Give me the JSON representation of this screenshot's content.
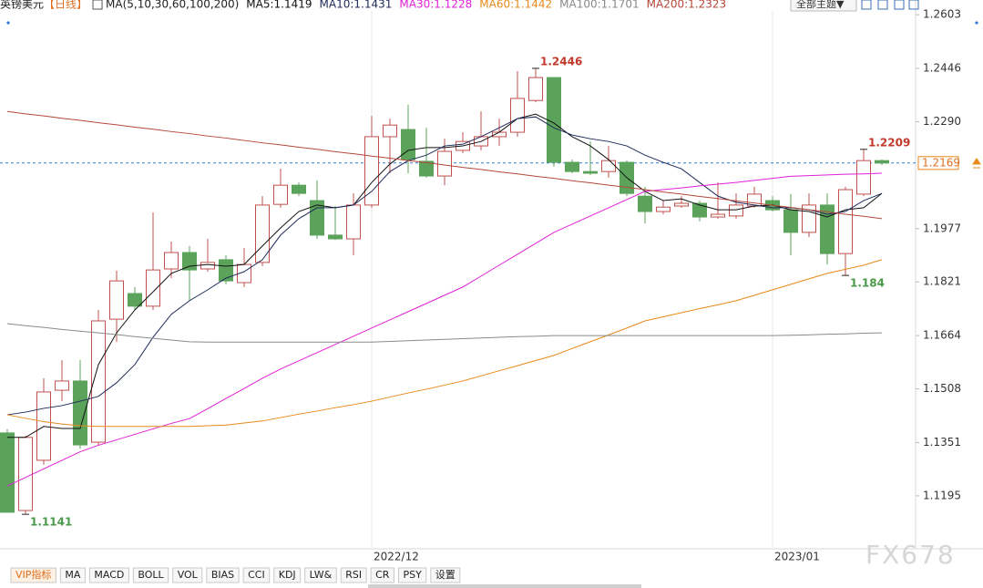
{
  "header": {
    "symbol": "英镑美元",
    "period": "【日线】",
    "ma_params": "MA(5,10,30,60,100,200)",
    "theme_button": "全部主题▼"
  },
  "chart_data": {
    "type": "candlestick",
    "categories": [
      null,
      null,
      null,
      null,
      null,
      null,
      null,
      null,
      null,
      null,
      null,
      null,
      null,
      null,
      null,
      null,
      null,
      null,
      null,
      null,
      "2022/12",
      null,
      null,
      null,
      null,
      null,
      null,
      null,
      null,
      null,
      null,
      null,
      null,
      null,
      null,
      null,
      null,
      null,
      null,
      null,
      null,
      null,
      "2023/01",
      null,
      null,
      null,
      null,
      null,
      null
    ],
    "open": [
      1.1379,
      1.1152,
      1.1299,
      1.1504,
      1.1531,
      1.1352,
      1.1712,
      1.1787,
      1.175,
      1.1859,
      1.1907,
      1.1859,
      1.1886,
      1.1819,
      1.1878,
      1.2048,
      1.2104,
      1.2059,
      1.1958,
      1.1947,
      1.2046,
      1.2246,
      1.2267,
      1.2174,
      1.2131,
      1.2206,
      1.2219,
      1.2246,
      1.2259,
      1.2352,
      1.2419,
      1.2171,
      1.2144,
      1.2144,
      1.2171,
      1.2072,
      1.2027,
      1.2043,
      1.2051,
      1.2011,
      1.2014,
      1.2043,
      1.2059,
      1.2032,
      1.1966,
      1.2046,
      1.1904,
      1.2078,
      1.2176
    ],
    "high": [
      1.139,
      1.1371,
      1.1539,
      1.1592,
      1.1592,
      1.1739,
      1.1854,
      1.1806,
      1.2024,
      1.1939,
      1.1926,
      1.1947,
      1.1899,
      1.192,
      1.2072,
      1.2152,
      1.2112,
      1.2118,
      1.2043,
      1.208,
      1.2307,
      1.2299,
      1.2339,
      1.2272,
      1.224,
      1.2259,
      1.232,
      1.2299,
      1.2438,
      1.2446,
      1.2419,
      1.2179,
      1.2232,
      1.2219,
      1.2176,
      1.2099,
      1.2059,
      1.2072,
      1.2059,
      1.2112,
      1.208,
      1.2099,
      1.2072,
      1.2078,
      1.208,
      1.208,
      1.2099,
      1.2209,
      1.2179
    ],
    "low": [
      1.1145,
      1.1141,
      1.1286,
      1.1472,
      1.1333,
      1.1344,
      1.1646,
      1.1739,
      1.1739,
      1.1832,
      1.1766,
      1.1851,
      1.1814,
      1.1806,
      1.1867,
      1.2038,
      1.2072,
      1.1947,
      1.1944,
      1.1899,
      1.2038,
      1.2139,
      1.2139,
      1.2126,
      1.2104,
      1.2198,
      1.2206,
      1.2219,
      1.2246,
      1.2347,
      1.2158,
      1.2139,
      1.2134,
      1.2126,
      1.2072,
      1.1992,
      1.2019,
      1.2038,
      1.1998,
      1.2006,
      1.2006,
      1.2038,
      1.2027,
      1.1899,
      1.1952,
      1.1872,
      1.184,
      1.2072,
      1.2163
    ],
    "close": [
      1.1147,
      1.1366,
      1.1499,
      1.1531,
      1.1344,
      1.1707,
      1.1824,
      1.175,
      1.1856,
      1.1907,
      1.1856,
      1.1878,
      1.1824,
      1.1872,
      1.2046,
      1.2104,
      1.208,
      1.1958,
      1.1947,
      1.2046,
      1.2246,
      1.228,
      1.2179,
      1.2131,
      1.2203,
      1.2232,
      1.2246,
      1.2259,
      1.2358,
      1.2419,
      1.2171,
      1.2144,
      1.2139,
      1.2176,
      1.208,
      1.2027,
      1.204,
      1.2051,
      1.2011,
      1.2019,
      1.2046,
      1.2078,
      1.2032,
      1.1966,
      1.2046,
      1.1904,
      1.2091,
      1.2176,
      1.2169
    ],
    "up_color": "#c0504d",
    "down_color": "#5ba35b",
    "ylim": [
      1.104,
      1.2646
    ],
    "yticks": [
      1.2603,
      1.2446,
      {
        "value": 1.229,
        "label": "1.2290"
      },
      1.1977,
      1.1821,
      1.1664,
      1.1508,
      1.1351,
      1.1195
    ],
    "series": [
      {
        "name": "MA5:1.1419",
        "color": "#111111",
        "values": [
          1.1366,
          1.1366,
          1.1398,
          1.1392,
          1.1392,
          1.1579,
          1.1672,
          1.1739,
          1.1792,
          1.1846,
          1.1867,
          1.1872,
          1.1867,
          1.1872,
          1.1926,
          1.1979,
          1.2027,
          1.2046,
          1.2038,
          1.2046,
          1.2112,
          1.2166,
          1.2206,
          1.2214,
          1.2214,
          1.2219,
          1.2232,
          1.2259,
          1.2299,
          1.2312,
          1.2286,
          1.2246,
          1.2219,
          1.2179,
          1.2126,
          1.2086,
          1.2059,
          1.2064,
          1.2046,
          1.2032,
          1.2032,
          1.2043,
          1.2046,
          1.2032,
          1.2027,
          1.2011,
          1.2032,
          1.2038,
          1.208
        ]
      },
      {
        "name": "MA10:1.1431",
        "color": "#1f2a5a",
        "values": [
          1.1432,
          1.144,
          1.1451,
          1.1459,
          1.1472,
          1.1486,
          1.1526,
          1.1579,
          1.1659,
          1.1726,
          1.1766,
          1.1798,
          1.1832,
          1.1851,
          1.1886,
          1.1958,
          1.2006,
          1.2038,
          1.2038,
          1.2046,
          1.2086,
          1.2144,
          1.2176,
          1.2192,
          1.2219,
          1.2224,
          1.2246,
          1.2272,
          1.2299,
          1.2304,
          1.2272,
          1.2251,
          1.224,
          1.2232,
          1.2219,
          1.2192,
          1.2171,
          1.2152,
          1.2112,
          1.2072,
          1.2054,
          1.2046,
          1.2038,
          1.2038,
          1.2032,
          1.2019,
          1.2027,
          1.2059,
          1.208
        ]
      },
      {
        "name": "MA30:1.1228",
        "color": "#e020d8",
        "values": [
          1.1224,
          1.1249,
          1.1274,
          1.1299,
          1.1324,
          1.1343,
          1.1359,
          1.1375,
          1.1391,
          1.1407,
          1.1421,
          1.145,
          1.148,
          1.1509,
          1.1539,
          1.1566,
          1.159,
          1.1614,
          1.1638,
          1.1662,
          1.1686,
          1.171,
          1.1734,
          1.1758,
          1.1782,
          1.1806,
          1.1838,
          1.187,
          1.1902,
          1.1934,
          1.1966,
          1.199,
          1.2014,
          1.2038,
          1.2062,
          1.2086,
          1.2091,
          1.2096,
          1.2102,
          1.2107,
          1.2112,
          1.2118,
          1.2124,
          1.213,
          1.2132,
          1.2134,
          1.2136,
          1.2137,
          1.2139
        ]
      },
      {
        "name": "MA60:1.1442",
        "color": "#e8891c",
        "values": [
          1.1432,
          1.1422,
          1.1412,
          1.1405,
          1.14,
          1.1398,
          1.1398,
          1.1398,
          1.1398,
          1.1398,
          1.1398,
          1.14,
          1.1402,
          1.1408,
          1.1414,
          1.1424,
          1.1434,
          1.1443,
          1.1453,
          1.1462,
          1.1472,
          1.1484,
          1.1496,
          1.1507,
          1.1519,
          1.1531,
          1.1546,
          1.1561,
          1.1576,
          1.1591,
          1.1606,
          1.1626,
          1.1646,
          1.1666,
          1.1686,
          1.1707,
          1.1719,
          1.1731,
          1.1743,
          1.1754,
          1.1766,
          1.1782,
          1.1798,
          1.1814,
          1.183,
          1.1846,
          1.1858,
          1.187,
          1.1886
        ]
      },
      {
        "name": "MA100:1.1701",
        "color": "#8a8a8a",
        "values": [
          1.1699,
          1.1693,
          1.1688,
          1.1682,
          1.1677,
          1.1672,
          1.1667,
          1.1661,
          1.1656,
          1.1651,
          1.1646,
          1.1645,
          1.1645,
          1.1645,
          1.1645,
          1.1645,
          1.1645,
          1.1645,
          1.1645,
          1.1645,
          1.1645,
          1.1647,
          1.1649,
          1.1651,
          1.1653,
          1.1655,
          1.1657,
          1.1659,
          1.1661,
          1.1662,
          1.1664,
          1.1664,
          1.1664,
          1.1664,
          1.1664,
          1.1664,
          1.1664,
          1.1664,
          1.1664,
          1.1664,
          1.1664,
          1.1664,
          1.1664,
          1.1665,
          1.1666,
          1.1668,
          1.1669,
          1.1671,
          1.1672
        ]
      },
      {
        "name": "MA200:1.2323",
        "color": "#b5473a",
        "values": [
          1.232,
          1.2313,
          1.2307,
          1.23,
          1.2294,
          1.2287,
          1.2281,
          1.2274,
          1.2268,
          1.2261,
          1.2255,
          1.2248,
          1.2242,
          1.2235,
          1.2228,
          1.2222,
          1.2215,
          1.2209,
          1.2202,
          1.2196,
          1.2189,
          1.2183,
          1.2176,
          1.217,
          1.2163,
          1.2156,
          1.215,
          1.2143,
          1.2137,
          1.213,
          1.2124,
          1.2117,
          1.2111,
          1.2104,
          1.2098,
          1.2091,
          1.2084,
          1.2078,
          1.2071,
          1.2065,
          1.2058,
          1.2052,
          1.2045,
          1.2039,
          1.2032,
          1.2026,
          1.2019,
          1.2013,
          1.2006
        ]
      }
    ],
    "current_price": 1.2169,
    "annotations": [
      1.2446,
      1.1141,
      1.2209,
      1.184
    ]
  },
  "tabs": [
    "VIP指标",
    "MA",
    "MACD",
    "BOLL",
    "VOL",
    "BIAS",
    "CCI",
    "KDJ",
    "LW&",
    "RSI",
    "CR",
    "PSY",
    "设置"
  ],
  "watermark": "FX678"
}
